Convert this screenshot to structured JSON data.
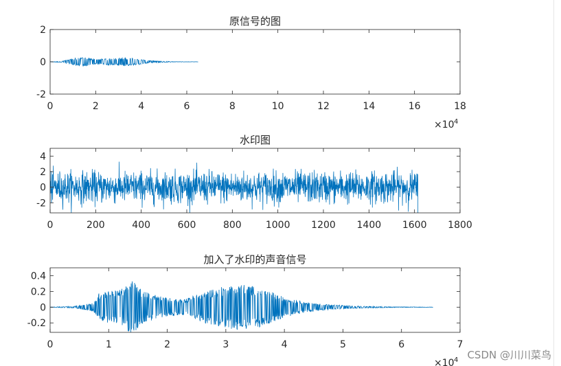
{
  "watermark": "CSDN @川川菜鸟",
  "colors": {
    "line": "#0072BD",
    "axis": "#262626",
    "text": "#262626"
  },
  "chart_data": [
    {
      "type": "line",
      "title": "原信号的图",
      "xlim": [
        0,
        180000
      ],
      "ylim": [
        -2,
        2
      ],
      "xticks": [
        0,
        20000,
        40000,
        60000,
        80000,
        100000,
        120000,
        140000,
        160000,
        180000
      ],
      "xtick_labels": [
        "0",
        "2",
        "4",
        "6",
        "8",
        "10",
        "12",
        "14",
        "16",
        "18"
      ],
      "yticks": [
        -2,
        0,
        2
      ],
      "ytick_labels": [
        "-2",
        "0",
        "2"
      ],
      "x_exponent": "×10",
      "x_exponent_power": "4",
      "signal": {
        "length": 65000,
        "envelope": [
          {
            "x": 0,
            "amp": 0.01
          },
          {
            "x": 5000,
            "amp": 0.03
          },
          {
            "x": 8500,
            "amp": 0.17
          },
          {
            "x": 14000,
            "amp": 0.3
          },
          {
            "x": 20000,
            "amp": 0.17
          },
          {
            "x": 24000,
            "amp": 0.18
          },
          {
            "x": 32000,
            "amp": 0.27
          },
          {
            "x": 38000,
            "amp": 0.2
          },
          {
            "x": 42000,
            "amp": 0.1
          },
          {
            "x": 48000,
            "amp": 0.04
          },
          {
            "x": 55000,
            "amp": 0.01
          },
          {
            "x": 65000,
            "amp": 0.005
          }
        ]
      }
    },
    {
      "type": "line",
      "title": "水印图",
      "xlim": [
        0,
        1800
      ],
      "ylim": [
        -3.3,
        5
      ],
      "xticks": [
        0,
        200,
        400,
        600,
        800,
        1000,
        1200,
        1400,
        1600,
        1800
      ],
      "xtick_labels": [
        "0",
        "200",
        "400",
        "600",
        "800",
        "1000",
        "1200",
        "1400",
        "1600",
        "1800"
      ],
      "yticks": [
        -2,
        0,
        2,
        4
      ],
      "ytick_labels": [
        "-2",
        "0",
        "2",
        "4"
      ],
      "signal": {
        "length": 1616,
        "noise_std": 1.0,
        "min": -3.3,
        "max": 3.5
      }
    },
    {
      "type": "line",
      "title": "加入了水印的声音信号",
      "xlim": [
        0,
        70000
      ],
      "ylim": [
        -0.32,
        0.5
      ],
      "xticks": [
        0,
        10000,
        20000,
        30000,
        40000,
        50000,
        60000,
        70000
      ],
      "xtick_labels": [
        "0",
        "1",
        "2",
        "3",
        "4",
        "5",
        "6",
        "7"
      ],
      "yticks": [
        -0.2,
        0,
        0.2,
        0.4
      ],
      "ytick_labels": [
        "-0.2",
        "0",
        "0.2",
        "0.4"
      ],
      "x_exponent": "×10",
      "x_exponent_power": "4",
      "signal": {
        "length": 65400,
        "envelope": [
          {
            "x": 0,
            "amp": 0.002
          },
          {
            "x": 4000,
            "amp": 0.01
          },
          {
            "x": 7500,
            "amp": 0.06
          },
          {
            "x": 8500,
            "amp": 0.2
          },
          {
            "x": 12000,
            "amp": 0.22
          },
          {
            "x": 14000,
            "amp": 0.35
          },
          {
            "x": 16000,
            "amp": 0.2
          },
          {
            "x": 20000,
            "amp": 0.12
          },
          {
            "x": 23000,
            "amp": 0.1
          },
          {
            "x": 27000,
            "amp": 0.22
          },
          {
            "x": 32000,
            "amp": 0.3
          },
          {
            "x": 36000,
            "amp": 0.25
          },
          {
            "x": 40000,
            "amp": 0.13
          },
          {
            "x": 44000,
            "amp": 0.06
          },
          {
            "x": 48000,
            "amp": 0.03
          },
          {
            "x": 52000,
            "amp": 0.015
          },
          {
            "x": 58000,
            "amp": 0.005
          },
          {
            "x": 65400,
            "amp": 0.002
          }
        ]
      }
    }
  ]
}
